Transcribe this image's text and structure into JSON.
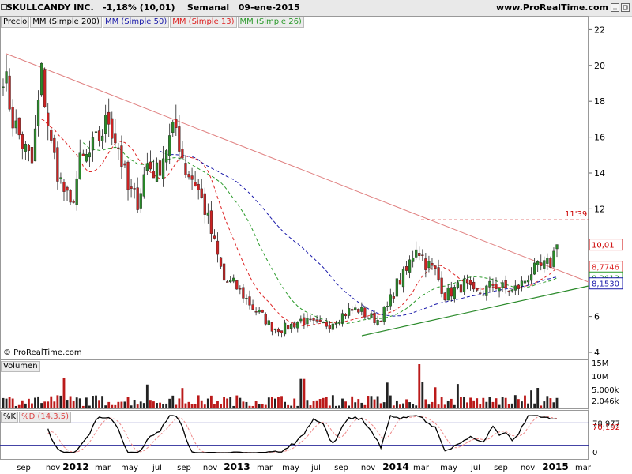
{
  "header": {
    "title": "SKULLCANDY INC.",
    "change": "-1,18% (10,01)",
    "period": "Semanal",
    "date": "09-ene-2015",
    "site": "www.ProRealTime.com"
  },
  "legend": {
    "price": "Precio",
    "ma200": "MM (Simple 200)",
    "ma50": "MM (Simple 50)",
    "ma13": "MM (Simple 13)",
    "ma26": "MM (Simple 26)"
  },
  "copyright": "© ProRealTime.com",
  "volume_label": "Volumen",
  "stoch_label_k": "%K",
  "stoch_label_d": "%D (14,3,5)",
  "colors": {
    "up": "#2a8a2a",
    "down": "#cc2222",
    "ma50": "#1a1aaa",
    "ma13": "#dd2222",
    "ma26": "#2a9a2a",
    "trendline": "#e08080",
    "support": "#2a8a2a",
    "price_badge": "#cc0000",
    "ma13_badge": "#dd2222",
    "ma26_badge": "#2a9a2a",
    "ma50_badge": "#1a1aaa"
  },
  "chart_data": {
    "type": "line",
    "price_axis": {
      "ticks": [
        4,
        6,
        8,
        10,
        12,
        14,
        16,
        18,
        20,
        22
      ],
      "ylim": [
        4,
        22.5
      ]
    },
    "x_tick_labels": [
      "sep",
      "nov",
      "2012",
      "mar",
      "may",
      "jul",
      "sep",
      "nov",
      "2013",
      "mar",
      "may",
      "jul",
      "sep",
      "nov",
      "2014",
      "mar",
      "may",
      "jul",
      "sep",
      "nov",
      "2015",
      "mar"
    ],
    "year_labels": [
      "2012",
      "2013",
      "2014",
      "2015"
    ],
    "resistance_label": "11'39",
    "resistance_level": 11.39,
    "last_price_label": "10,01",
    "ma13_label": "8,7746",
    "ma26_label": "8,2613",
    "ma50_label": "8,1530",
    "price_path": [
      [
        0,
        19.8
      ],
      [
        3,
        17
      ],
      [
        6,
        15.6
      ],
      [
        9,
        14.5
      ],
      [
        12,
        19.5
      ],
      [
        15,
        15.5
      ],
      [
        18,
        13.5
      ],
      [
        21,
        12
      ],
      [
        24,
        14.5
      ],
      [
        27,
        15
      ],
      [
        30,
        16
      ],
      [
        33,
        17
      ],
      [
        36,
        15.5
      ],
      [
        39,
        13
      ],
      [
        42,
        12.5
      ],
      [
        45,
        14.5
      ],
      [
        48,
        14
      ],
      [
        51,
        15.5
      ],
      [
        54,
        16.5
      ],
      [
        57,
        14.2
      ],
      [
        60,
        13.5
      ],
      [
        63,
        12
      ],
      [
        66,
        10
      ],
      [
        69,
        8
      ],
      [
        72,
        7.8
      ],
      [
        75,
        7.2
      ],
      [
        78,
        6.5
      ],
      [
        81,
        6
      ],
      [
        84,
        5.4
      ],
      [
        87,
        5.3
      ],
      [
        90,
        5.5
      ],
      [
        93,
        5.8
      ],
      [
        96,
        5.6
      ],
      [
        99,
        5.5
      ],
      [
        102,
        5.6
      ],
      [
        105,
        6
      ],
      [
        108,
        6.3
      ],
      [
        111,
        6.4
      ],
      [
        114,
        6
      ],
      [
        117,
        5.8
      ],
      [
        120,
        6.5
      ],
      [
        123,
        7.8
      ],
      [
        126,
        8.5
      ],
      [
        129,
        10
      ],
      [
        132,
        9
      ],
      [
        135,
        8.5
      ],
      [
        138,
        7.2
      ],
      [
        141,
        7.5
      ],
      [
        144,
        7.8
      ],
      [
        147,
        7.2
      ],
      [
        150,
        7.4
      ],
      [
        153,
        7.8
      ],
      [
        156,
        7.6
      ],
      [
        159,
        7.4
      ],
      [
        162,
        7.8
      ],
      [
        165,
        8.5
      ],
      [
        168,
        8.7
      ],
      [
        171,
        9
      ],
      [
        173,
        10.01
      ]
    ],
    "volume_axis": {
      "labels": [
        "15M",
        "10M",
        "5.000k",
        "2.046k"
      ]
    },
    "stoch_axis": {
      "labels": [
        "78,977",
        "70,192",
        "0"
      ],
      "ylim": [
        0,
        100
      ]
    }
  }
}
